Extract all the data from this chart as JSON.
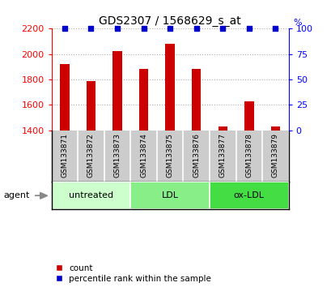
{
  "title": "GDS2307 / 1568629_s_at",
  "samples": [
    "GSM133871",
    "GSM133872",
    "GSM133873",
    "GSM133874",
    "GSM133875",
    "GSM133876",
    "GSM133877",
    "GSM133878",
    "GSM133879"
  ],
  "counts": [
    1920,
    1790,
    2025,
    1880,
    2080,
    1880,
    1430,
    1630,
    1430
  ],
  "percentiles": [
    100,
    100,
    100,
    100,
    100,
    100,
    100,
    100,
    100
  ],
  "ylim_left": [
    1400,
    2200
  ],
  "ylim_right": [
    0,
    100
  ],
  "yticks_left": [
    1400,
    1600,
    1800,
    2000,
    2200
  ],
  "yticks_right": [
    0,
    25,
    50,
    75,
    100
  ],
  "bar_color": "#cc0000",
  "percentile_color": "#0000cc",
  "percentile_marker": "s",
  "percentile_size": 5,
  "bar_baseline": 1400,
  "groups": [
    {
      "label": "untreated",
      "start": 0,
      "end": 3,
      "color": "#ccffcc"
    },
    {
      "label": "LDL",
      "start": 3,
      "end": 6,
      "color": "#88ee88"
    },
    {
      "label": "ox-LDL",
      "start": 6,
      "end": 9,
      "color": "#44dd44"
    }
  ],
  "agent_label": "agent",
  "legend_count_label": "count",
  "legend_percentile_label": "percentile rank within the sample",
  "grid_color": "#aaaaaa",
  "background_color": "#ffffff",
  "sample_box_color": "#cccccc"
}
